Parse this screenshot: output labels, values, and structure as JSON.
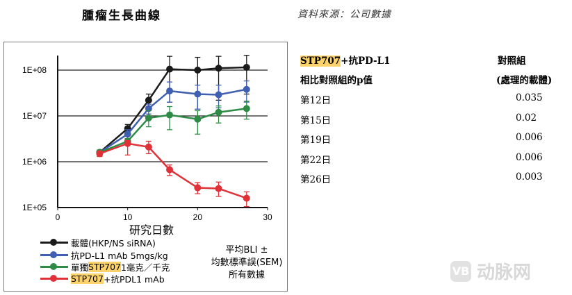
{
  "header": {
    "title": "腫瘤生長曲線",
    "source": "資料來源：公司數據"
  },
  "chart_data": {
    "type": "line",
    "xlabel": "研究日數",
    "xlim": [
      0,
      30
    ],
    "xticks": [
      "0",
      "10",
      "20",
      "30"
    ],
    "ylim": [
      100000,
      200000000
    ],
    "yscale": "log",
    "yticks": [
      "1E+05",
      "1E+06",
      "1E+07",
      "1E+08"
    ],
    "grid": "horizontal",
    "legend_placement": "bottom-left",
    "x": [
      6,
      10,
      13,
      16,
      20,
      23,
      27
    ],
    "series": [
      {
        "name": "載體(HKP/NS siRNA)",
        "color": "#1a1a1a",
        "values": [
          1600000.0,
          5300000.0,
          22000000.0,
          105000000.0,
          100000000.0,
          110000000.0,
          115000000.0
        ],
        "upper": [
          1800000.0,
          6500000.0,
          30000000.0,
          200000000.0,
          190000000.0,
          200000000.0,
          210000000.0
        ],
        "lower": [
          1400000.0,
          4500000.0,
          16000000.0,
          20000000.0,
          14000000.0,
          22000000.0,
          30000000.0
        ]
      },
      {
        "name": "抗PD-L1 mAb 5mgs/kg",
        "color": "#3f5fb0",
        "values": [
          1600000.0,
          4000000.0,
          14500000.0,
          35000000.0,
          30000000.0,
          29000000.0,
          38000000.0
        ],
        "upper": [
          1800000.0,
          5000000.0,
          18000000.0,
          55000000.0,
          47000000.0,
          47000000.0,
          58000000.0
        ],
        "lower": [
          1400000.0,
          3200000.0,
          11000000.0,
          20000000.0,
          14000000.0,
          15000000.0,
          20000000.0
        ]
      },
      {
        "name_parts": [
          "單獨",
          "STP707",
          " 1毫克／千克"
        ],
        "name": "單獨STP707 1毫克／千克",
        "color": "#2e8b45",
        "values": [
          1600000.0,
          2800000.0,
          9000000.0,
          10500000.0,
          8500000.0,
          12000000.0,
          14500000.0
        ],
        "upper": [
          1800000.0,
          3200000.0,
          13000000.0,
          16000000.0,
          13000000.0,
          16500000.0,
          21000000.0
        ],
        "lower": [
          1400000.0,
          2400000.0,
          5800000.0,
          5000000.0,
          4000000.0,
          7000000.0,
          8500000.0
        ]
      },
      {
        "name_parts": [
          "STP707",
          "+抗PDL1 mAb"
        ],
        "name": "STP707+抗PDL1 mAb",
        "color": "#e03038",
        "values": [
          1500000.0,
          2500000.0,
          2100000.0,
          670000.0,
          270000.0,
          260000.0,
          160000.0
        ],
        "upper": [
          1700000.0,
          2900000.0,
          2800000.0,
          850000.0,
          350000.0,
          360000.0,
          220000.0
        ],
        "lower": [
          1300000.0,
          1400000.0,
          1500000.0,
          500000.0,
          200000.0,
          175000.0,
          105000.0
        ]
      }
    ],
    "note": [
      "平均BLI ±",
      "均數標準誤(SEM)",
      "所有數據"
    ]
  },
  "table": {
    "col1_header": [
      "STP707",
      "+抗PD-L1",
      "相比對照組的p值"
    ],
    "col2_header": [
      "對照組",
      "(處理的載體)"
    ],
    "rows": [
      {
        "day": "第12日",
        "p": "0.035"
      },
      {
        "day": "第15日",
        "p": "0.02"
      },
      {
        "day": "第19日",
        "p": "0.006"
      },
      {
        "day": "第22日",
        "p": "0.006"
      },
      {
        "day": "第26日",
        "p": "0.003"
      }
    ]
  },
  "watermark": {
    "text": "动脉网",
    "logo": "VB"
  }
}
